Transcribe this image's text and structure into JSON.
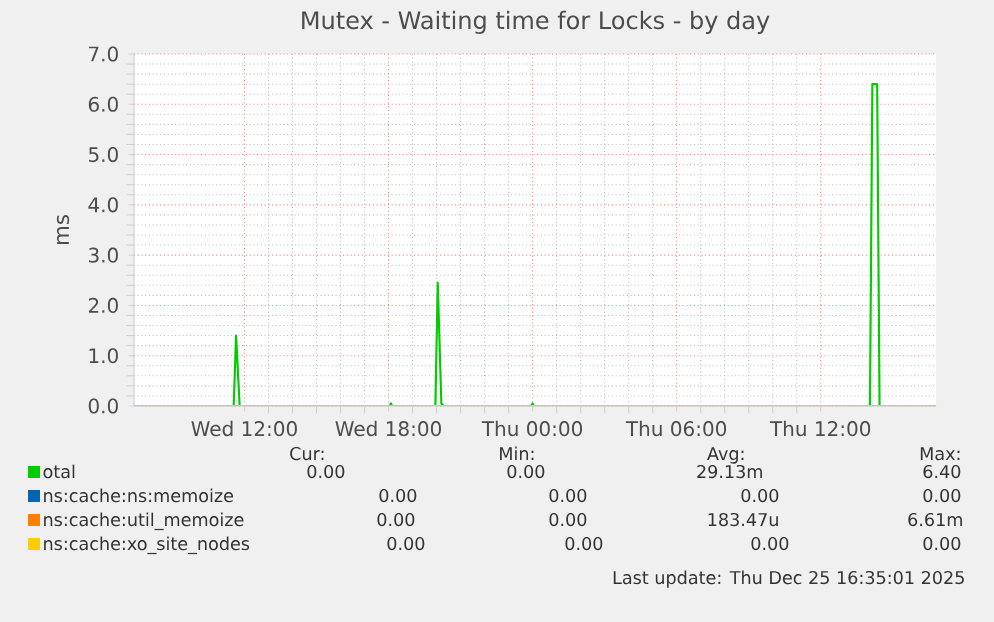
{
  "chart_data": {
    "type": "line",
    "title": "Mutex - Waiting time for Locks - by day",
    "ylabel": "ms",
    "xlim": [
      "2025-12-24T07:24",
      "2025-12-25T16:48"
    ],
    "ylim": [
      0,
      7
    ],
    "xticks": [
      {
        "value": "2025-12-24T12:00",
        "label": "Wed 12:00"
      },
      {
        "value": "2025-12-24T18:00",
        "label": "Wed 18:00"
      },
      {
        "value": "2025-12-25T00:00",
        "label": "Thu 00:00"
      },
      {
        "value": "2025-12-25T06:00",
        "label": "Thu 06:00"
      },
      {
        "value": "2025-12-25T12:00",
        "label": "Thu 12:00"
      }
    ],
    "yticks": [
      {
        "value": 0,
        "label": "0.0"
      },
      {
        "value": 1,
        "label": "1.0"
      },
      {
        "value": 2,
        "label": "2.0"
      },
      {
        "value": 3,
        "label": "3.0"
      },
      {
        "value": 4,
        "label": "4.0"
      },
      {
        "value": 5,
        "label": "5.0"
      },
      {
        "value": 6,
        "label": "6.0"
      },
      {
        "value": 7,
        "label": "7.0"
      }
    ],
    "grid": true,
    "legend": "bottom",
    "marker": "none",
    "series": [
      {
        "name": "otal",
        "color": "#00cc00",
        "x": [
          "2025-12-24T07:24",
          "2025-12-24T11:33",
          "2025-12-24T11:39",
          "2025-12-24T11:48",
          "2025-12-24T18:03",
          "2025-12-24T18:06",
          "2025-12-24T18:09",
          "2025-12-24T19:57",
          "2025-12-24T20:03",
          "2025-12-24T20:12",
          "2025-12-24T20:18",
          "2025-12-24T23:57",
          "2025-12-25T00:00",
          "2025-12-25T00:03",
          "2025-12-25T14:03",
          "2025-12-25T14:09",
          "2025-12-25T14:21",
          "2025-12-25T14:27",
          "2025-12-25T16:48"
        ],
        "values": [
          0,
          0,
          1.4,
          0,
          0,
          0.05,
          0,
          0,
          2.45,
          0.05,
          0,
          0,
          0.05,
          0,
          0,
          6.4,
          6.4,
          0,
          0
        ]
      },
      {
        "name": "ns:cache:ns:memoize",
        "color": "#0066b3"
      },
      {
        "name": "ns:cache:util_memoize",
        "color": "#ff8000"
      },
      {
        "name": "ns:cache:xo_site_nodes",
        "color": "#ffcc00",
        "x": [
          "2025-12-24T07:24",
          "2025-12-25T16:48"
        ],
        "values": [
          0,
          0
        ]
      }
    ],
    "annotations": [
      "Cur:",
      "Min:",
      "Avg:",
      "Max:",
      "0.00",
      "0.00",
      "29.13m",
      "6.40",
      "0.00",
      "0.00",
      "0.00",
      "0.00",
      "0.00",
      "0.00",
      "183.47u",
      "6.61m",
      "0.00",
      "0.00",
      "0.00",
      "0.00",
      "Last update: Thu Dec 25 16:35:01 2025"
    ]
  }
}
